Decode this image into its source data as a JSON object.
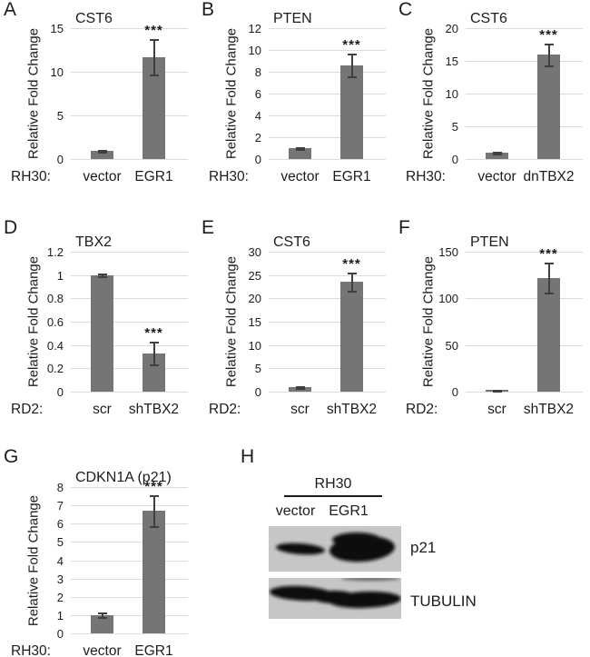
{
  "figure": {
    "colors": {
      "bar": "#757575",
      "grid": "#dcdcdc",
      "error": "#3f3f3f",
      "text": "#1c1c1c",
      "blot_background": "#c6c6c6",
      "band": "#0b0b0b"
    }
  },
  "chart_data": [
    {
      "panel": "A",
      "type": "bar",
      "title": "CST6",
      "ylabel": "Relative Fold Change",
      "cell_line_label": "RH30:",
      "categories": [
        "vector",
        "EGR1"
      ],
      "values": [
        0.95,
        11.7
      ],
      "errors": [
        0.12,
        2.0
      ],
      "significance": [
        "",
        "***"
      ],
      "ylim": [
        0,
        15
      ],
      "yticks": [
        0,
        5,
        10,
        15
      ],
      "grid": true,
      "legend": "none"
    },
    {
      "panel": "B",
      "type": "bar",
      "title": "PTEN",
      "ylabel": "Relative Fold Change",
      "cell_line_label": "RH30:",
      "categories": [
        "vector",
        "EGR1"
      ],
      "values": [
        1.0,
        8.6
      ],
      "errors": [
        0.06,
        1.05
      ],
      "significance": [
        "",
        "***"
      ],
      "ylim": [
        0,
        12
      ],
      "yticks": [
        0,
        2,
        4,
        6,
        8,
        10,
        12
      ],
      "grid": true,
      "legend": "none"
    },
    {
      "panel": "C",
      "type": "bar",
      "title": "CST6",
      "ylabel": "Relative Fold Change",
      "cell_line_label": "RH30:",
      "categories": [
        "vector",
        "dnTBX2"
      ],
      "values": [
        1.0,
        16.0
      ],
      "errors": [
        0.15,
        1.7
      ],
      "significance": [
        "",
        "***"
      ],
      "ylim": [
        0,
        20
      ],
      "yticks": [
        0,
        5,
        10,
        15,
        20
      ],
      "grid": true,
      "legend": "none"
    },
    {
      "panel": "D",
      "type": "bar",
      "title": "TBX2",
      "ylabel": "Relative Fold Change",
      "cell_line_label": "RD2:",
      "categories": [
        "scr",
        "shTBX2"
      ],
      "values": [
        1.0,
        0.33
      ],
      "errors": [
        0.01,
        0.1
      ],
      "significance": [
        "",
        "***"
      ],
      "ylim": [
        0,
        1.2
      ],
      "yticks": [
        0,
        0.2,
        0.4,
        0.6,
        0.8,
        1,
        1.2
      ],
      "grid": true,
      "legend": "none"
    },
    {
      "panel": "E",
      "type": "bar",
      "title": "CST6",
      "ylabel": "Relative Fold Change",
      "cell_line_label": "RD2:",
      "categories": [
        "scr",
        "shTBX2"
      ],
      "values": [
        1.0,
        23.6
      ],
      "errors": [
        0.25,
        2.0
      ],
      "significance": [
        "",
        "***"
      ],
      "ylim": [
        0,
        30
      ],
      "yticks": [
        0,
        5,
        10,
        15,
        20,
        25,
        30
      ],
      "grid": true,
      "legend": "none"
    },
    {
      "panel": "F",
      "type": "bar",
      "title": "PTEN",
      "ylabel": "Relative Fold Change",
      "cell_line_label": "RD2:",
      "categories": [
        "scr",
        "shTBX2"
      ],
      "values": [
        1.5,
        122
      ],
      "errors": [
        0.5,
        16
      ],
      "significance": [
        "",
        "***"
      ],
      "ylim": [
        0,
        150
      ],
      "yticks": [
        0,
        50,
        100,
        150
      ],
      "grid": true,
      "legend": "none"
    },
    {
      "panel": "G",
      "type": "bar",
      "title": "CDKN1A (p21)",
      "ylabel": "Relative Fold Change",
      "cell_line_label": "RH30:",
      "categories": [
        "vector",
        "EGR1"
      ],
      "values": [
        1.0,
        6.7
      ],
      "errors": [
        0.12,
        0.85
      ],
      "significance": [
        "",
        "***"
      ],
      "ylim": [
        0,
        8
      ],
      "yticks": [
        0,
        1,
        2,
        3,
        4,
        5,
        6,
        7,
        8
      ],
      "grid": true,
      "legend": "none"
    }
  ],
  "blot_panel": {
    "panel": "H",
    "cell_line": "RH30",
    "lanes": [
      "vector",
      "EGR1"
    ],
    "blots": [
      {
        "label": "p21",
        "band_intensities": [
          "weak",
          "strong"
        ]
      },
      {
        "label": "TUBULIN",
        "band_intensities": [
          "strong",
          "strong"
        ]
      }
    ]
  }
}
